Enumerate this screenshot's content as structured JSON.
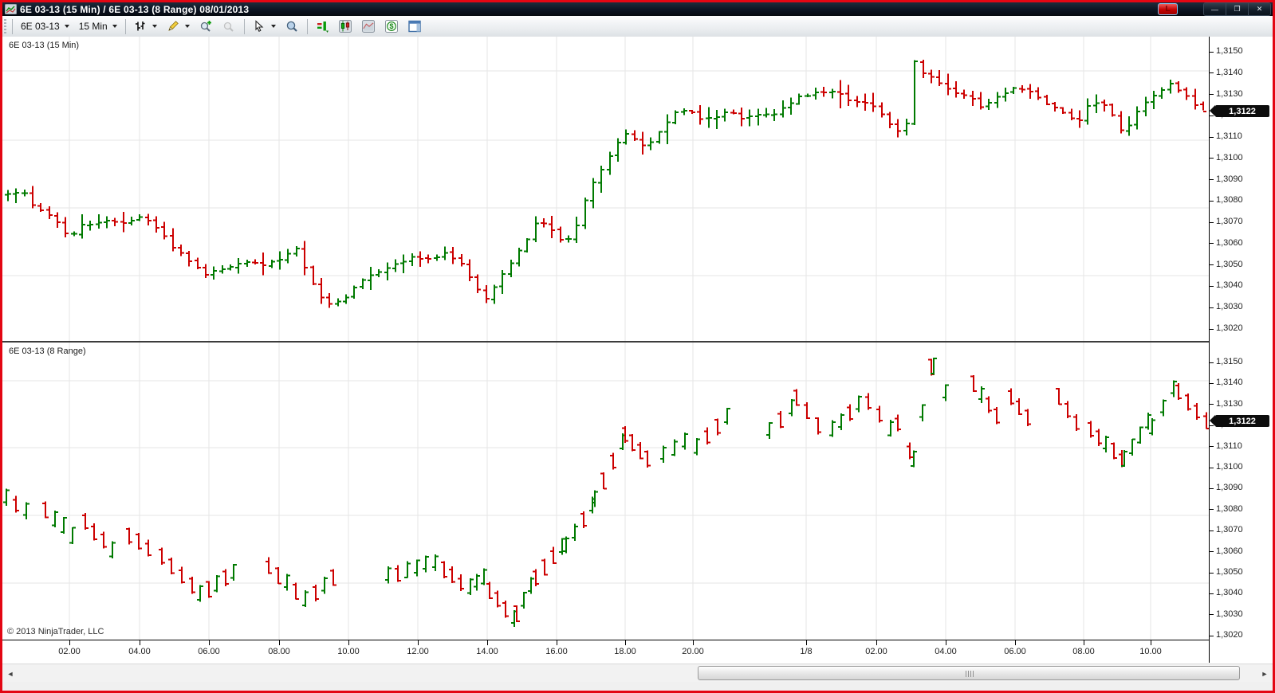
{
  "window": {
    "title": "6E 03-13 (15 Min) / 6E 03-13 (8 Range)  08/01/2013",
    "app_icon": "chart-icon",
    "link_button_label": "L",
    "border_color": "#e30613",
    "controls": [
      {
        "name": "minimize-button",
        "glyph": "—"
      },
      {
        "name": "restore-button",
        "glyph": "❐"
      },
      {
        "name": "close-button",
        "glyph": "✕"
      }
    ]
  },
  "toolbar": {
    "instrument": "6E 03-13",
    "interval": "15 Min",
    "icons": [
      "bar-type-icon",
      "drawing-pencil-icon",
      "zoom-in-icon",
      "zoom-out-icon",
      "cursor-icon",
      "data-box-icon",
      "chart-trader-icon",
      "candlestick-chart-icon",
      "chart-region-icon",
      "dollar-icon",
      "window-panel-icon"
    ]
  },
  "panels": [
    {
      "label": "6E 03-13 (15 Min)"
    },
    {
      "label": "6E 03-13 (8 Range)"
    }
  ],
  "copyright": "© 2013 NinjaTrader, LLC",
  "price_axis": {
    "labels": [
      "1,3150",
      "1,3140",
      "1,3130",
      "1,3120",
      "1,3110",
      "1,3100",
      "1,3090",
      "1,3080",
      "1,3070",
      "1,3060",
      "1,3050",
      "1,3040",
      "1,3030",
      "1,3020"
    ],
    "values": [
      1.315,
      1.314,
      1.313,
      1.312,
      1.311,
      1.31,
      1.309,
      1.308,
      1.307,
      1.306,
      1.305,
      1.304,
      1.303,
      1.302
    ],
    "marker": {
      "text": "1,3122",
      "value": 1.3122,
      "bg": "#0c0c0c",
      "fg": "#ffffff"
    }
  },
  "time_axis": {
    "ticks": [
      {
        "label": "02.00",
        "f": 0.0555
      },
      {
        "label": "04.00",
        "f": 0.1137
      },
      {
        "label": "06.00",
        "f": 0.1712
      },
      {
        "label": "08.00",
        "f": 0.2293
      },
      {
        "label": "10.00",
        "f": 0.2868
      },
      {
        "label": "12.00",
        "f": 0.3443
      },
      {
        "label": "14.00",
        "f": 0.4018
      },
      {
        "label": "16.00",
        "f": 0.4593
      },
      {
        "label": "18.00",
        "f": 0.5163
      },
      {
        "label": "20.00",
        "f": 0.5724
      },
      {
        "label": "1/8",
        "f": 0.666
      },
      {
        "label": "02.00",
        "f": 0.7245
      },
      {
        "label": "04.00",
        "f": 0.782
      },
      {
        "label": "06.00",
        "f": 0.8395
      },
      {
        "label": "08.00",
        "f": 0.896
      },
      {
        "label": "10.00",
        "f": 0.952
      }
    ]
  },
  "scrollbar": {
    "thumb_from_f": 0.549,
    "thumb_to_f": 0.988,
    "left_arrow": "◄",
    "right_arrow": "►"
  },
  "chart_data": [
    {
      "type": "bar",
      "subtype": "ohlc-bars",
      "title": "6E 03-13 (15 Min)",
      "instrument": "6E 03-13",
      "interval": "15 Min",
      "up_color": "#007a00",
      "down_color": "#cc0000",
      "ylim": [
        1.3016,
        1.3154
      ],
      "price_step": 0.001,
      "last_price": 1.3122,
      "bar_count": 146,
      "note": "~146 15-minute OHLC bars; path_anchors are [x_fraction, price] estimates read from the chart",
      "seed": 42,
      "path_anchors": [
        [
          0.004,
          1.3083
        ],
        [
          0.016,
          1.3085
        ],
        [
          0.028,
          1.3077
        ],
        [
          0.043,
          1.3073
        ],
        [
          0.055,
          1.3063
        ],
        [
          0.068,
          1.3069
        ],
        [
          0.083,
          1.3071
        ],
        [
          0.1,
          1.307
        ],
        [
          0.114,
          1.3072
        ],
        [
          0.128,
          1.3068
        ],
        [
          0.143,
          1.3058
        ],
        [
          0.157,
          1.3051
        ],
        [
          0.17,
          1.3045
        ],
        [
          0.184,
          1.3049
        ],
        [
          0.199,
          1.3051
        ],
        [
          0.215,
          1.305
        ],
        [
          0.23,
          1.3052
        ],
        [
          0.243,
          1.3058
        ],
        [
          0.252,
          1.3048
        ],
        [
          0.262,
          1.3036
        ],
        [
          0.272,
          1.3032
        ],
        [
          0.284,
          1.3034
        ],
        [
          0.295,
          1.3043
        ],
        [
          0.31,
          1.3046
        ],
        [
          0.324,
          1.3051
        ],
        [
          0.339,
          1.3053
        ],
        [
          0.354,
          1.3052
        ],
        [
          0.368,
          1.3056
        ],
        [
          0.381,
          1.305
        ],
        [
          0.392,
          1.304
        ],
        [
          0.4,
          1.3034
        ],
        [
          0.411,
          1.3043
        ],
        [
          0.424,
          1.3053
        ],
        [
          0.434,
          1.3062
        ],
        [
          0.444,
          1.307
        ],
        [
          0.454,
          1.3068
        ],
        [
          0.464,
          1.3061
        ],
        [
          0.473,
          1.3064
        ],
        [
          0.482,
          1.3078
        ],
        [
          0.491,
          1.309
        ],
        [
          0.5,
          1.3098
        ],
        [
          0.51,
          1.3108
        ],
        [
          0.519,
          1.3112
        ],
        [
          0.529,
          1.3105
        ],
        [
          0.541,
          1.311
        ],
        [
          0.552,
          1.3118
        ],
        [
          0.562,
          1.3123
        ],
        [
          0.572,
          1.3121
        ],
        [
          0.582,
          1.3117
        ],
        [
          0.592,
          1.312
        ],
        [
          0.602,
          1.3122
        ],
        [
          0.614,
          1.3119
        ],
        [
          0.626,
          1.3121
        ],
        [
          0.638,
          1.312
        ],
        [
          0.65,
          1.3124
        ],
        [
          0.661,
          1.3129
        ],
        [
          0.672,
          1.3131
        ],
        [
          0.683,
          1.3132
        ],
        [
          0.694,
          1.313
        ],
        [
          0.706,
          1.3126
        ],
        [
          0.717,
          1.3125
        ],
        [
          0.727,
          1.3122
        ],
        [
          0.736,
          1.3116
        ],
        [
          0.744,
          1.3111
        ],
        [
          0.751,
          1.3118
        ],
        [
          0.7555,
          1.3146
        ],
        [
          0.763,
          1.3141
        ],
        [
          0.772,
          1.3137
        ],
        [
          0.781,
          1.3134
        ],
        [
          0.791,
          1.3131
        ],
        [
          0.801,
          1.3129
        ],
        [
          0.811,
          1.3124
        ],
        [
          0.821,
          1.3128
        ],
        [
          0.831,
          1.3131
        ],
        [
          0.841,
          1.3134
        ],
        [
          0.851,
          1.3132
        ],
        [
          0.861,
          1.3128
        ],
        [
          0.871,
          1.3124
        ],
        [
          0.881,
          1.3121
        ],
        [
          0.891,
          1.3117
        ],
        [
          0.901,
          1.3125
        ],
        [
          0.911,
          1.3128
        ],
        [
          0.92,
          1.312
        ],
        [
          0.929,
          1.3112
        ],
        [
          0.939,
          1.312
        ],
        [
          0.949,
          1.3128
        ],
        [
          0.959,
          1.3132
        ],
        [
          0.969,
          1.3135
        ],
        [
          0.979,
          1.313
        ],
        [
          0.988,
          1.3125
        ],
        [
          0.997,
          1.3122
        ]
      ]
    },
    {
      "type": "bar",
      "subtype": "ohlc-range-bars",
      "title": "6E 03-13 (8 Range)",
      "instrument": "6E 03-13",
      "interval": "8 Range",
      "up_color": "#007a00",
      "down_color": "#cc0000",
      "ylim": [
        1.3016,
        1.3154
      ],
      "price_step": 0.001,
      "bar_range": 0.0008,
      "last_price": 1.3122,
      "note": "8-tick range bars drawn in time-aligned clusters with gaps; segments are [f0,f1,price0,price1] estimates",
      "seed": 77,
      "segments": [
        [
          0.003,
          0.02,
          1.3086,
          1.308
        ],
        [
          0.036,
          0.058,
          1.308,
          1.3068
        ],
        [
          0.069,
          0.091,
          1.3074,
          1.3061
        ],
        [
          0.105,
          0.121,
          1.3068,
          1.3062
        ],
        [
          0.132,
          0.157,
          1.3058,
          1.3044
        ],
        [
          0.164,
          0.192,
          1.304,
          1.305
        ],
        [
          0.221,
          0.251,
          1.3053,
          1.3038
        ],
        [
          0.26,
          0.274,
          1.304,
          1.3048
        ],
        [
          0.32,
          0.359,
          1.3049,
          1.3055
        ],
        [
          0.366,
          0.38,
          1.3052,
          1.3045
        ],
        [
          0.388,
          0.399,
          1.3043,
          1.3048
        ],
        [
          0.404,
          0.424,
          1.3042,
          1.3028
        ],
        [
          0.426,
          0.438,
          1.303,
          1.3044
        ],
        [
          0.442,
          0.464,
          1.3048,
          1.3063
        ],
        [
          0.467,
          0.489,
          1.3063,
          1.3082
        ],
        [
          0.491,
          0.514,
          1.3085,
          1.3112
        ],
        [
          0.516,
          0.535,
          1.3116,
          1.3104
        ],
        [
          0.548,
          0.566,
          1.3106,
          1.3112
        ],
        [
          0.576,
          0.601,
          1.311,
          1.3124
        ],
        [
          0.636,
          0.654,
          1.3118,
          1.3128
        ],
        [
          0.658,
          0.676,
          1.3133,
          1.312
        ],
        [
          0.688,
          0.71,
          1.3118,
          1.313
        ],
        [
          0.718,
          0.736,
          1.3131,
          1.3119
        ],
        [
          0.742,
          0.752,
          1.3121,
          1.3108
        ],
        [
          0.7555,
          0.77,
          1.3104,
          1.3148
        ],
        [
          0.772,
          0.782,
          1.3148,
          1.3136
        ],
        [
          0.805,
          0.824,
          1.314,
          1.3125
        ],
        [
          0.836,
          0.85,
          1.3134,
          1.3124
        ],
        [
          0.876,
          0.89,
          1.3134,
          1.3122
        ],
        [
          0.902,
          0.928,
          1.3118,
          1.3104
        ],
        [
          0.93,
          0.95,
          1.3104,
          1.3122
        ],
        [
          0.953,
          0.971,
          1.312,
          1.3137
        ],
        [
          0.975,
          0.998,
          1.3136,
          1.3122
        ]
      ]
    }
  ]
}
